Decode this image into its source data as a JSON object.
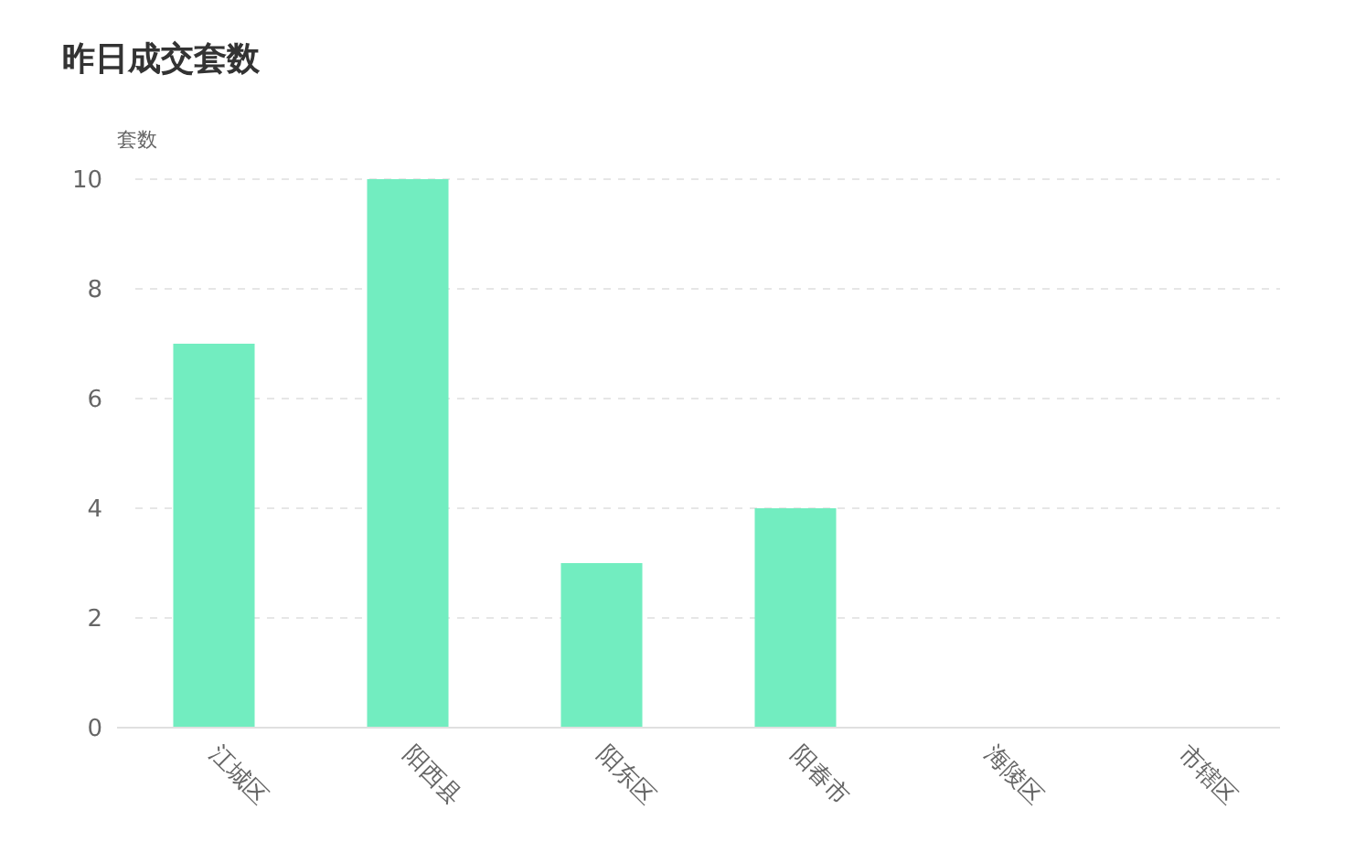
{
  "chart_data": {
    "type": "bar",
    "title": "昨日成交套数",
    "ylabel": "套数",
    "categories": [
      "江城区",
      "阳西县",
      "阳东区",
      "阳春市",
      "海陵区",
      "市辖区"
    ],
    "values": [
      7,
      10,
      3,
      4,
      0,
      0
    ],
    "color": "#72edc0",
    "ylim": [
      0,
      10
    ],
    "yticks": [
      0,
      2,
      4,
      6,
      8,
      10
    ],
    "grid": "y"
  }
}
